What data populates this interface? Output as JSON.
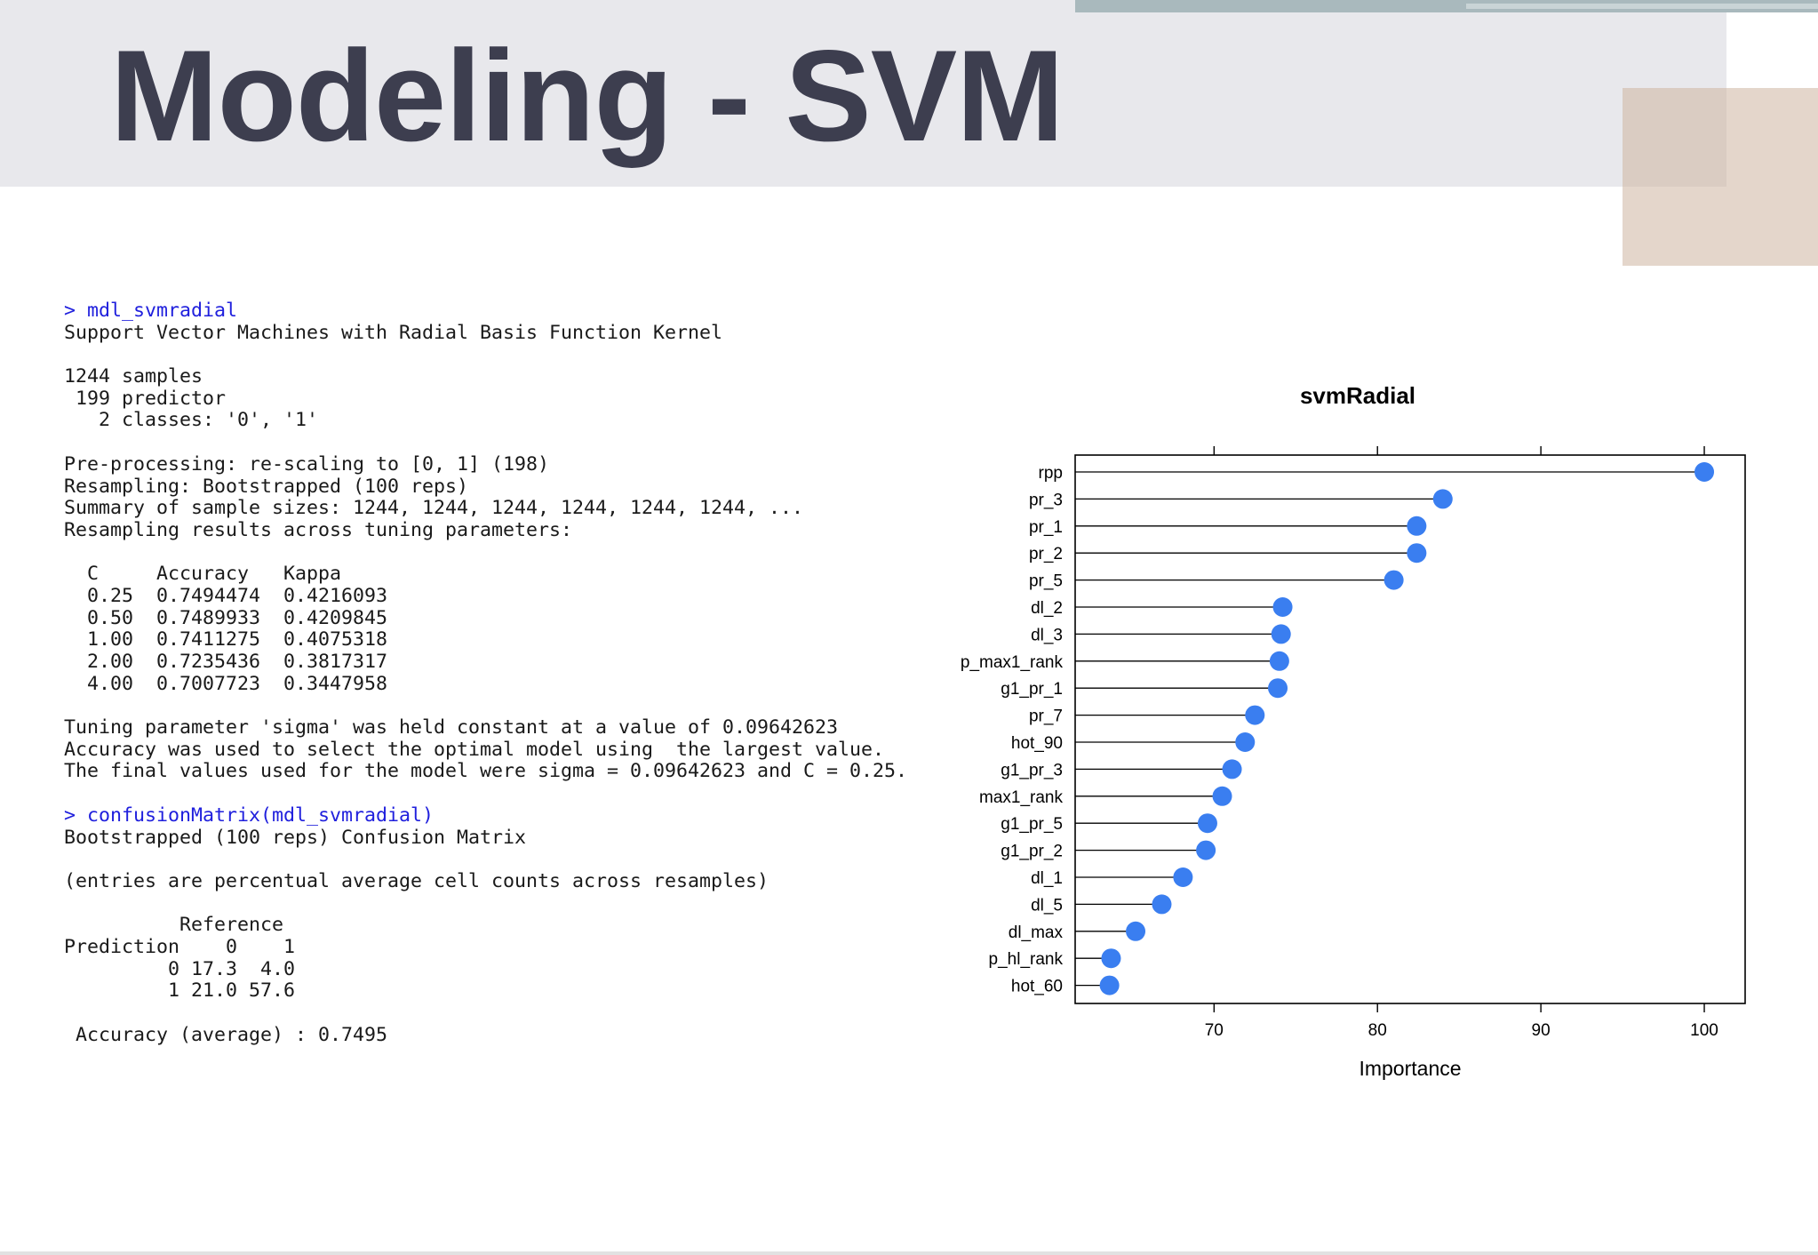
{
  "slide": {
    "title": "Modeling - SVM"
  },
  "console": {
    "lines": [
      {
        "text": "> mdl_svmradial",
        "cmd": true
      },
      {
        "text": "Support Vector Machines with Radial Basis Function Kernel"
      },
      {
        "text": ""
      },
      {
        "text": "1244 samples"
      },
      {
        "text": " 199 predictor"
      },
      {
        "text": "   2 classes: '0', '1'"
      },
      {
        "text": ""
      },
      {
        "text": "Pre-processing: re-scaling to [0, 1] (198)"
      },
      {
        "text": "Resampling: Bootstrapped (100 reps)"
      },
      {
        "text": "Summary of sample sizes: 1244, 1244, 1244, 1244, 1244, 1244, ..."
      },
      {
        "text": "Resampling results across tuning parameters:"
      },
      {
        "text": ""
      },
      {
        "text": "  C     Accuracy   Kappa"
      },
      {
        "text": "  0.25  0.7494474  0.4216093"
      },
      {
        "text": "  0.50  0.7489933  0.4209845"
      },
      {
        "text": "  1.00  0.7411275  0.4075318"
      },
      {
        "text": "  2.00  0.7235436  0.3817317"
      },
      {
        "text": "  4.00  0.7007723  0.3447958"
      },
      {
        "text": ""
      },
      {
        "text": "Tuning parameter 'sigma' was held constant at a value of 0.09642623"
      },
      {
        "text": "Accuracy was used to select the optimal model using  the largest value."
      },
      {
        "text": "The final values used for the model were sigma = 0.09642623 and C = 0.25."
      },
      {
        "text": ""
      },
      {
        "text": "> confusionMatrix(mdl_svmradial)",
        "cmd": true
      },
      {
        "text": "Bootstrapped (100 reps) Confusion Matrix"
      },
      {
        "text": ""
      },
      {
        "text": "(entries are percentual average cell counts across resamples)"
      },
      {
        "text": ""
      },
      {
        "text": "          Reference"
      },
      {
        "text": "Prediction    0    1"
      },
      {
        "text": "         0 17.3  4.0"
      },
      {
        "text": "         1 21.0 57.6"
      },
      {
        "text": ""
      },
      {
        "text": " Accuracy (average) : 0.7495"
      }
    ]
  },
  "colors": {
    "point": "#3a7ef0",
    "title_text": "#3d3e4f",
    "command_text": "#2020dd"
  },
  "chart_data": {
    "type": "scatter",
    "style": "dotplot-lollipop",
    "title": "svmRadial",
    "xlabel": "Importance",
    "ylabel": "",
    "xlim": [
      61.5,
      102.5
    ],
    "xticks": [
      70,
      80,
      90,
      100
    ],
    "grid": false,
    "categories": [
      "rpp",
      "pr_3",
      "pr_1",
      "pr_2",
      "pr_5",
      "dl_2",
      "dl_3",
      "p_max1_rank",
      "g1_pr_1",
      "pr_7",
      "hot_90",
      "g1_pr_3",
      "max1_rank",
      "g1_pr_5",
      "g1_pr_2",
      "dl_1",
      "dl_5",
      "dl_max",
      "p_hl_rank",
      "hot_60"
    ],
    "values": [
      100.0,
      84.0,
      82.4,
      82.4,
      81.0,
      74.2,
      74.1,
      74.0,
      73.9,
      72.5,
      71.9,
      71.1,
      70.5,
      69.6,
      69.5,
      68.1,
      66.8,
      65.2,
      63.7,
      63.6
    ]
  }
}
